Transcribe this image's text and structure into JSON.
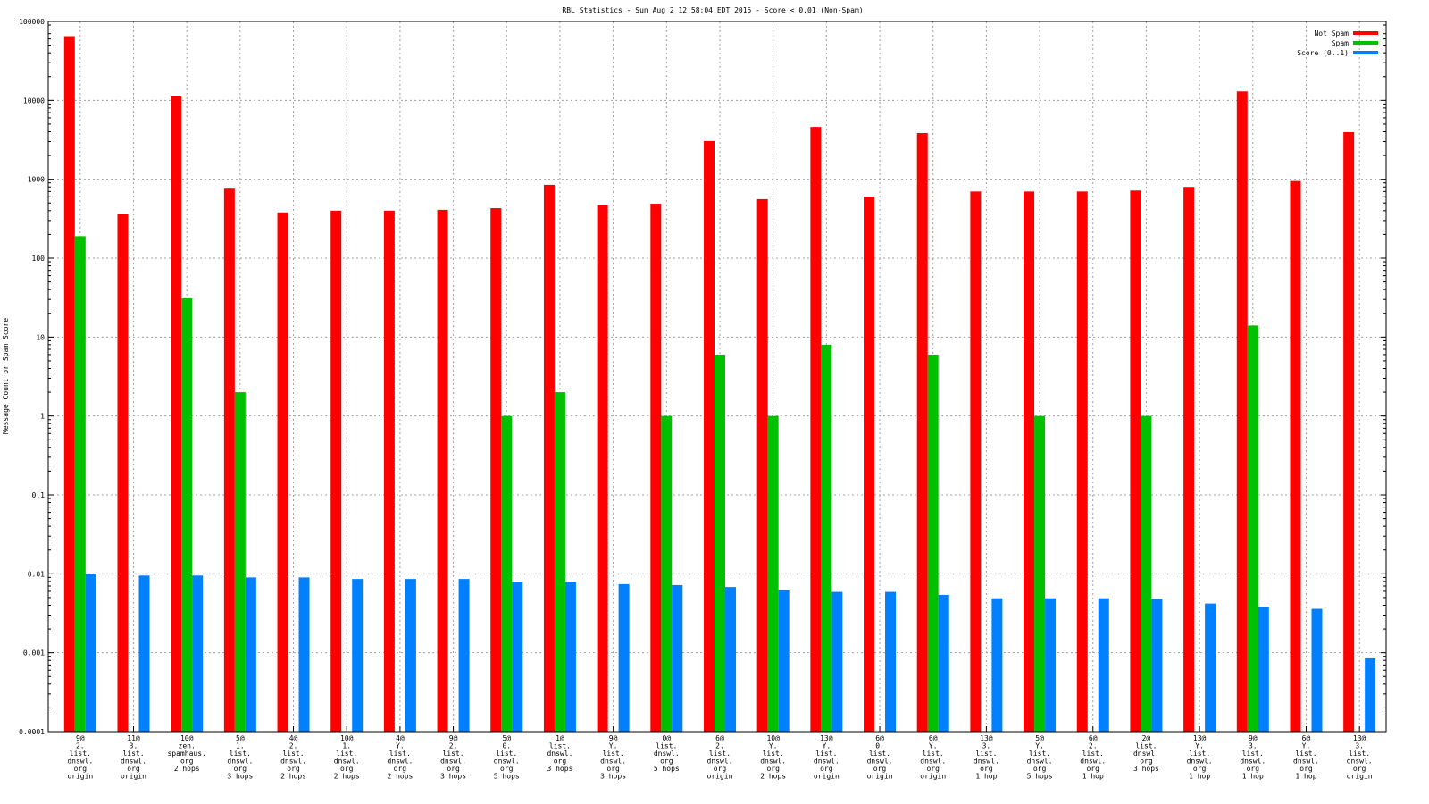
{
  "chart_data": {
    "type": "bar",
    "title": "RBL Statistics - Sun Aug  2 12:58:04 EDT 2015 - Score < 0.01 (Non-Spam)",
    "xlabel": "",
    "ylabel": "Message Count or Spam Score",
    "yscale": "log",
    "ylim": [
      0.0001,
      100000
    ],
    "yticks": [
      "0.0001",
      "0.001",
      "0.01",
      "0.1",
      "1",
      "10",
      "100",
      "1000",
      "10000",
      "100000"
    ],
    "grid": true,
    "legend_position": "top-right",
    "categories": [
      [
        "9@",
        "2.",
        "list.",
        "dnswl.",
        "org",
        "origin"
      ],
      [
        "11@",
        "3.",
        "list.",
        "dnswl.",
        "org",
        "origin"
      ],
      [
        "10@",
        "zen.",
        "spamhaus.",
        "org",
        "2 hops"
      ],
      [
        "5@",
        "1.",
        "list.",
        "dnswl.",
        "org",
        "3 hops"
      ],
      [
        "4@",
        "2.",
        "list.",
        "dnswl.",
        "org",
        "2 hops"
      ],
      [
        "10@",
        "1.",
        "list.",
        "dnswl.",
        "org",
        "2 hops"
      ],
      [
        "4@",
        "Y.",
        "list.",
        "dnswl.",
        "org",
        "2 hops"
      ],
      [
        "9@",
        "2.",
        "list.",
        "dnswl.",
        "org",
        "3 hops"
      ],
      [
        "5@",
        "0.",
        "list.",
        "dnswl.",
        "org",
        "5 hops"
      ],
      [
        "1@",
        "list.",
        "dnswl.",
        "org",
        "3 hops"
      ],
      [
        "9@",
        "Y.",
        "list.",
        "dnswl.",
        "org",
        "3 hops"
      ],
      [
        "0@",
        "list.",
        "dnswl.",
        "org",
        "5 hops"
      ],
      [
        "6@",
        "2.",
        "list.",
        "dnswl.",
        "org",
        "origin"
      ],
      [
        "10@",
        "Y.",
        "list.",
        "dnswl.",
        "org",
        "2 hops"
      ],
      [
        "13@",
        "Y.",
        "list.",
        "dnswl.",
        "org",
        "origin"
      ],
      [
        "6@",
        "0.",
        "list.",
        "dnswl.",
        "org",
        "origin"
      ],
      [
        "6@",
        "Y.",
        "list.",
        "dnswl.",
        "org",
        "origin"
      ],
      [
        "13@",
        "3.",
        "list.",
        "dnswl.",
        "org",
        "1 hop"
      ],
      [
        "5@",
        "Y.",
        "list.",
        "dnswl.",
        "org",
        "5 hops"
      ],
      [
        "6@",
        "2.",
        "list.",
        "dnswl.",
        "org",
        "1 hop"
      ],
      [
        "2@",
        "list.",
        "dnswl.",
        "org",
        "3 hops"
      ],
      [
        "13@",
        "Y.",
        "list.",
        "dnswl.",
        "org",
        "1 hop"
      ],
      [
        "9@",
        "3.",
        "list.",
        "dnswl.",
        "org",
        "1 hop"
      ],
      [
        "6@",
        "Y.",
        "list.",
        "dnswl.",
        "org",
        "1 hop"
      ],
      [
        "13@",
        "3.",
        "list.",
        "dnswl.",
        "org",
        "origin"
      ]
    ],
    "series": [
      {
        "name": "Not Spam",
        "color": "#ff0000",
        "values": [
          65000,
          360,
          11200,
          760,
          380,
          400,
          400,
          410,
          430,
          850,
          470,
          490,
          3050,
          560,
          4600,
          600,
          3850,
          700,
          700,
          700,
          720,
          800,
          13000,
          950,
          3950
        ]
      },
      {
        "name": "Spam",
        "color": "#00c000",
        "values": [
          190,
          0,
          31,
          2,
          0,
          0,
          0,
          0,
          1,
          2,
          0,
          1,
          6,
          1,
          8,
          0,
          6,
          0,
          1,
          0,
          1,
          0,
          14,
          0,
          0
        ]
      },
      {
        "name": "Score (0..1)",
        "color": "#0080ff",
        "values": [
          0.01,
          0.0095,
          0.0095,
          0.009,
          0.009,
          0.0086,
          0.0086,
          0.0086,
          0.0079,
          0.0079,
          0.0074,
          0.0072,
          0.0068,
          0.0062,
          0.0059,
          0.0059,
          0.0054,
          0.0049,
          0.0049,
          0.0049,
          0.0048,
          0.0042,
          0.0038,
          0.0036,
          0.00085
        ]
      }
    ]
  }
}
